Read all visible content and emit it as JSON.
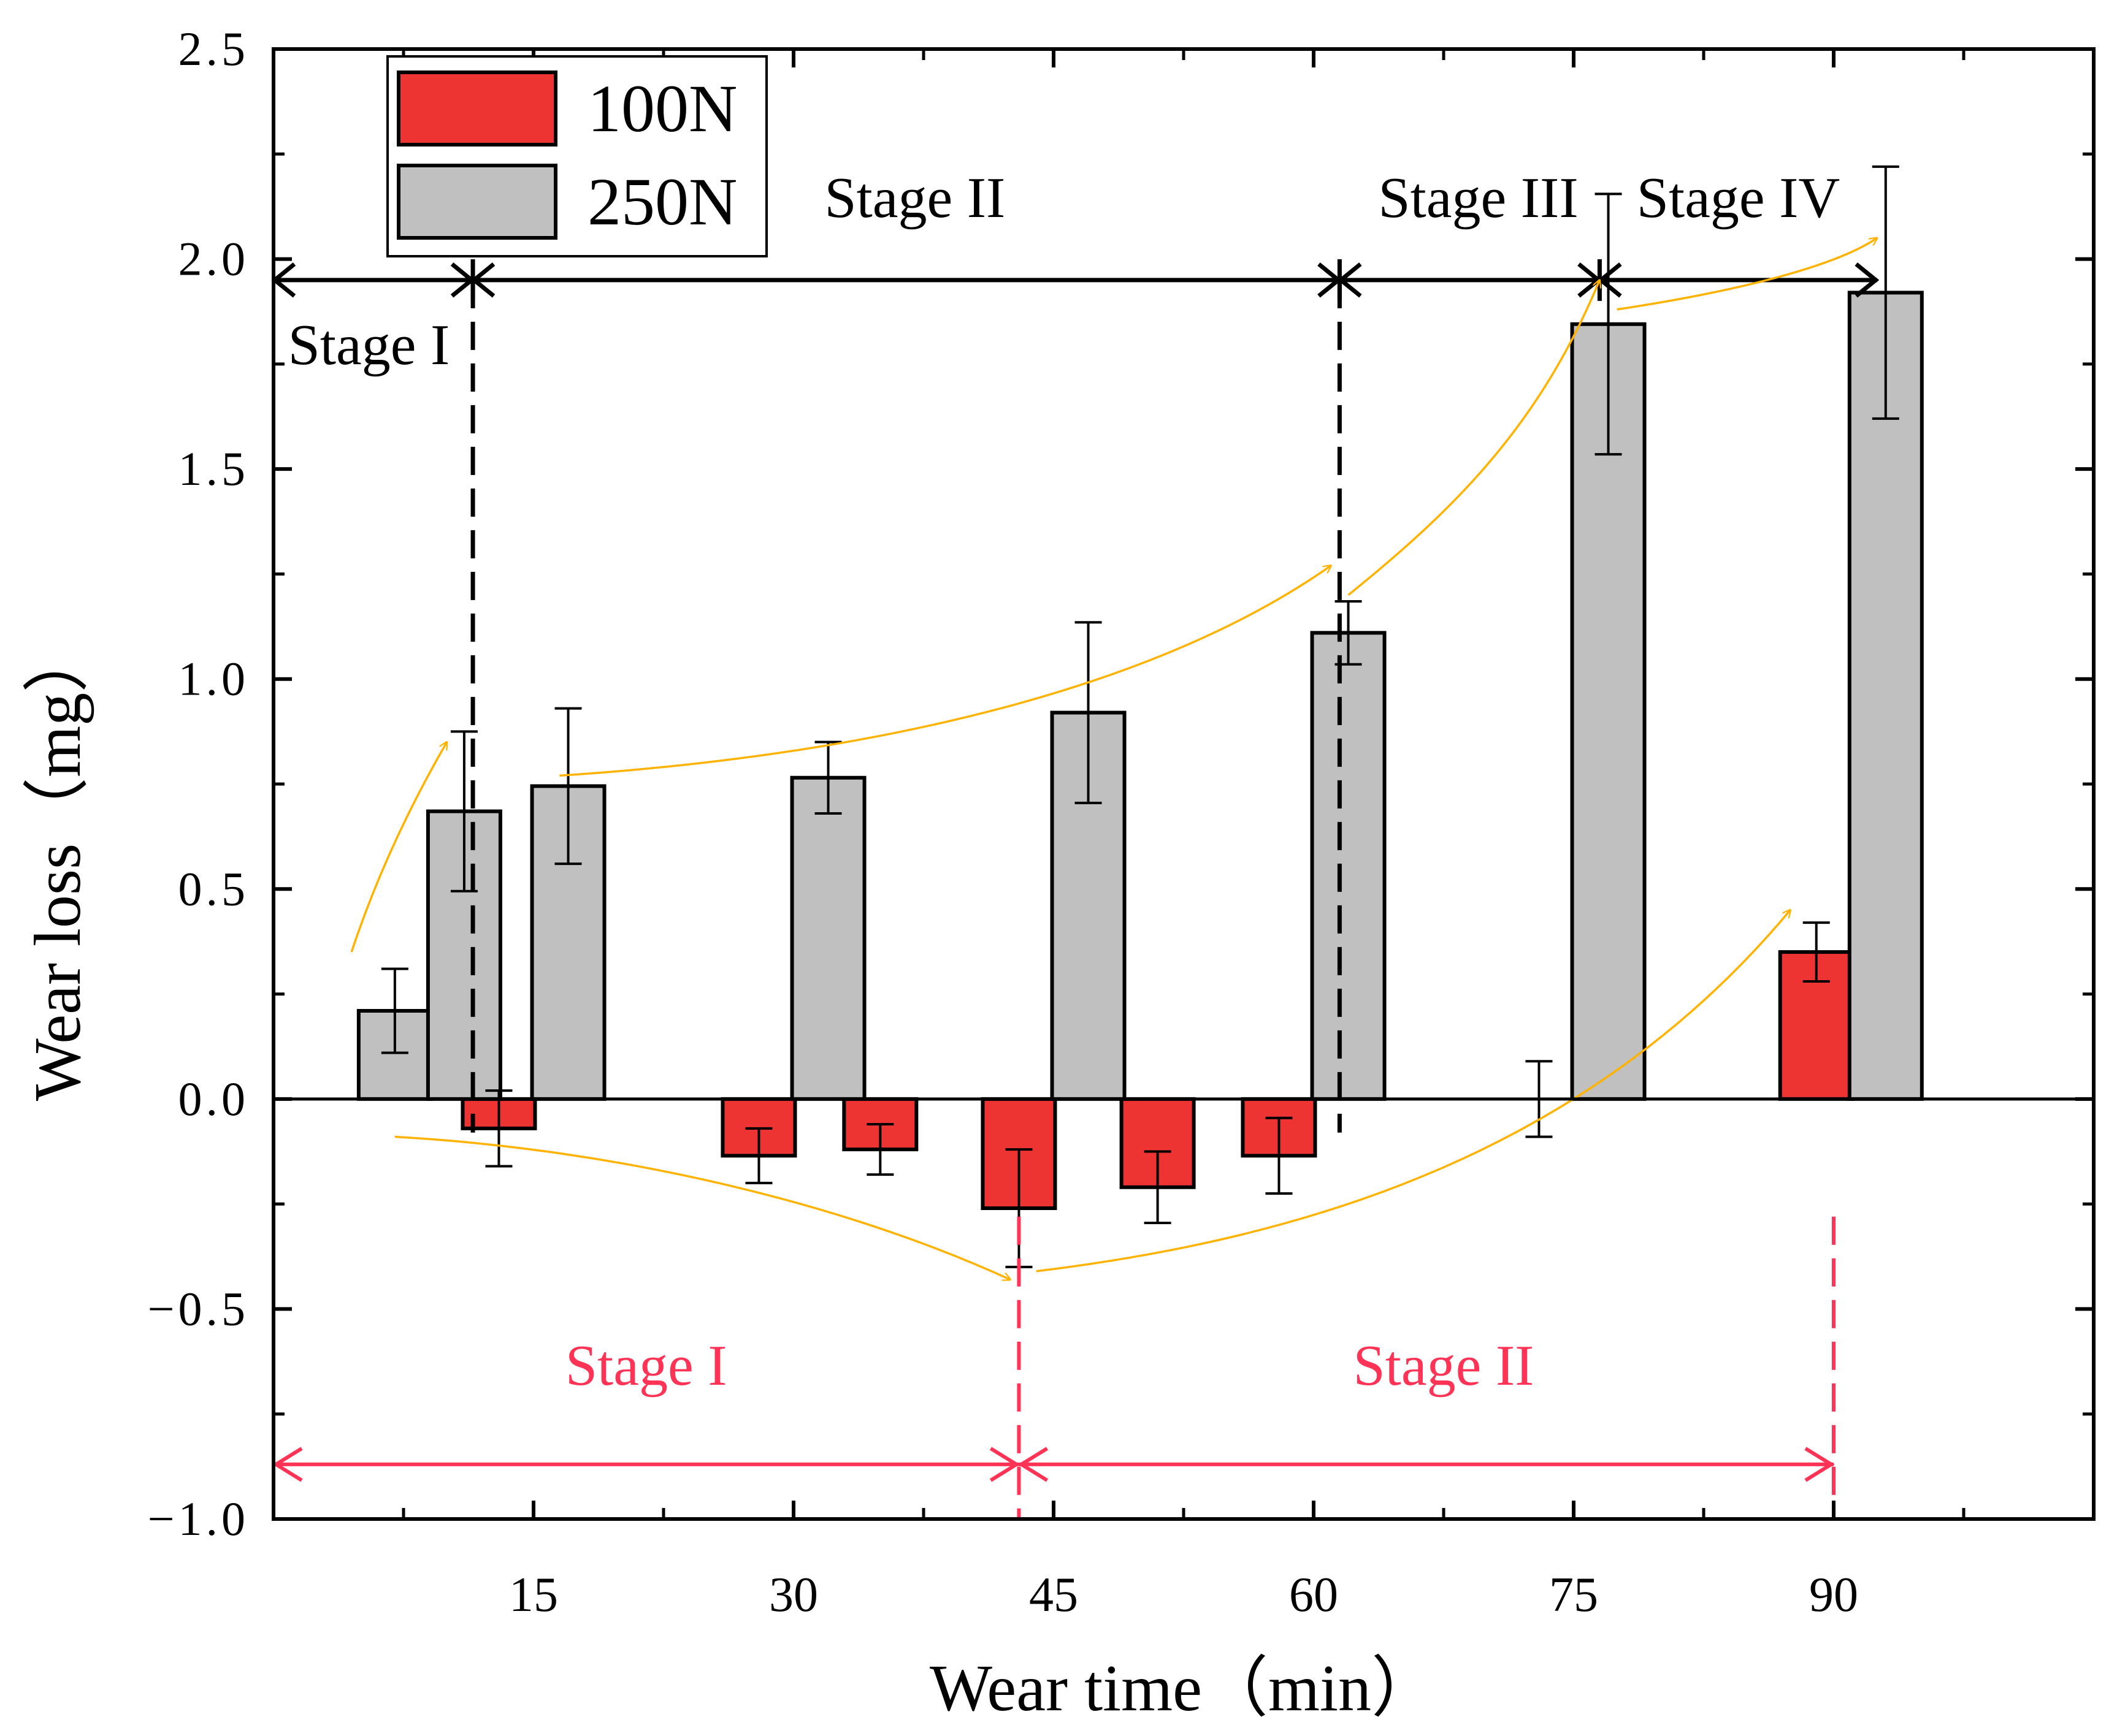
{
  "chart_data": {
    "type": "bar",
    "xlabel": "Wear time（min）",
    "ylabel": "Wear loss（mg）",
    "ylim": [
      -1.0,
      2.5
    ],
    "xlim": [
      0,
      105
    ],
    "grid": false,
    "legend_position": "top-left",
    "yticks": [
      "2.5",
      "2.0",
      "1.5",
      "1.0",
      "0.5",
      "0.0",
      "−0.5",
      "−1.0"
    ],
    "ytick_values": [
      2.5,
      2.0,
      1.5,
      1.0,
      0.5,
      0.0,
      -0.5,
      -1.0
    ],
    "xticks": [
      "15",
      "30",
      "45",
      "60",
      "75",
      "90"
    ],
    "xtick_values": [
      15,
      30,
      45,
      60,
      75,
      90
    ],
    "series": [
      {
        "name": "100N",
        "color": "#ee3333",
        "x": [
          13,
          28,
          35,
          43,
          51,
          58,
          73,
          89
        ],
        "values": [
          -0.07,
          -0.135,
          -0.12,
          -0.26,
          -0.21,
          -0.135,
          0.0,
          0.35
        ],
        "errors": [
          0.09,
          0.065,
          0.06,
          0.14,
          0.085,
          0.09,
          0.09,
          0.07
        ]
      },
      {
        "name": "250N",
        "color": "#c0c0c0",
        "x": [
          7,
          11,
          17,
          32,
          47,
          62,
          77,
          93
        ],
        "values": [
          0.21,
          0.685,
          0.745,
          0.765,
          0.92,
          1.11,
          1.845,
          1.92
        ],
        "errors": [
          0.1,
          0.19,
          0.185,
          0.085,
          0.215,
          0.075,
          0.31,
          0.3
        ]
      }
    ],
    "annotations": {
      "black_stages": [
        {
          "label": "Stage I",
          "x": 5.5,
          "y": 1.75
        },
        {
          "label": "Stage II",
          "x": 37,
          "y": 2.1
        },
        {
          "label": "Stage III",
          "x": 69.5,
          "y": 2.1
        },
        {
          "label": "Stage IV",
          "x": 84.5,
          "y": 2.1
        }
      ],
      "red_stages": [
        {
          "label": "Stage I",
          "x": 21.5,
          "y": -0.68
        },
        {
          "label": "Stage II",
          "x": 67.5,
          "y": -0.68
        }
      ],
      "black_boundaries": [
        0,
        11.5,
        61.5,
        76.5,
        92.5
      ],
      "black_dashed": [
        11.5,
        61.5
      ],
      "black_arrow_y": 1.95,
      "red_boundaries": [
        0,
        43,
        90
      ],
      "red_dashed": [
        43,
        90
      ],
      "red_arrow_y": -0.87,
      "black_color": "#000000",
      "red_color": "#ff3355",
      "trend_color": "#ffb300"
    }
  }
}
